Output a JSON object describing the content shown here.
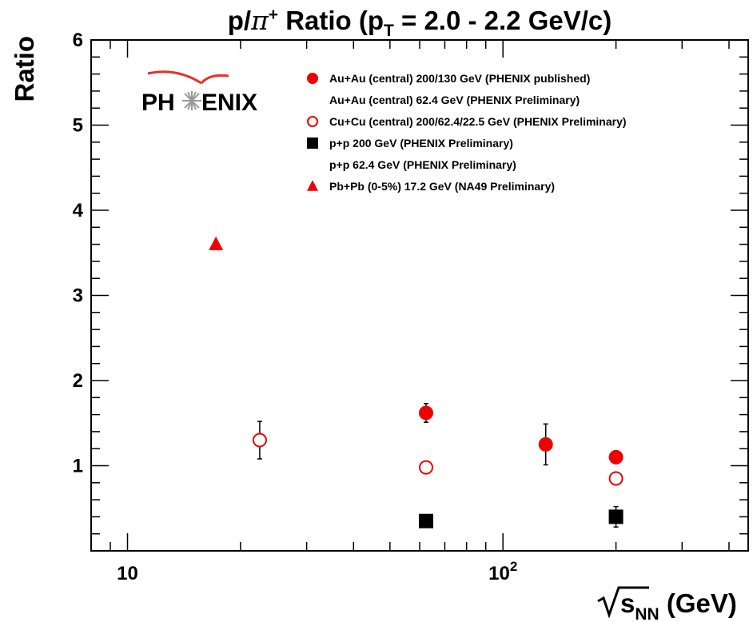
{
  "chart_data": {
    "type": "scatter",
    "title_parts": {
      "lead": "p/",
      "pi": "π",
      "sup": "+",
      "mid": " Ratio (p",
      "sub": "T",
      "tail": " = 2.0 - 2.2 GeV/c)"
    },
    "ylabel": "Ratio",
    "xlabel_parts": {
      "s": "s",
      "sub": "NN",
      "unit": " (GeV)"
    },
    "xscale": "log",
    "xlim": [
      8,
      450
    ],
    "ylim": [
      0,
      6
    ],
    "grid": false,
    "legend_position": "top-right",
    "x_ticks": [
      {
        "value": 10,
        "base": "10",
        "exp": ""
      },
      {
        "value": 100,
        "base": "10",
        "exp": "2"
      }
    ],
    "y_ticks": [
      {
        "value": 1,
        "label": "1"
      },
      {
        "value": 2,
        "label": "2"
      },
      {
        "value": 3,
        "label": "3"
      },
      {
        "value": 4,
        "label": "4"
      },
      {
        "value": 5,
        "label": "5"
      },
      {
        "value": 6,
        "label": "6"
      }
    ],
    "series": [
      {
        "name": "Au+Au (central) 200/130 GeV (PHENIX published)",
        "marker": "filled-circle",
        "color": "#ee0000",
        "points": [
          {
            "x": 130,
            "y": 1.25,
            "err": 0.24
          },
          {
            "x": 200,
            "y": 1.1,
            "err": 0.04
          }
        ]
      },
      {
        "name": "Au+Au (central) 62.4 GeV (PHENIX Preliminary)",
        "marker": "filled-circle",
        "color": "#ee0000",
        "legend_marker": "none",
        "points": [
          {
            "x": 62.4,
            "y": 1.62,
            "err": 0.11
          }
        ]
      },
      {
        "name": "Cu+Cu (central) 200/62.4/22.5 GeV (PHENIX Preliminary)",
        "marker": "open-circle",
        "color": "#ee0000",
        "points": [
          {
            "x": 22.5,
            "y": 1.3,
            "err": 0.22
          },
          {
            "x": 62.4,
            "y": 0.98,
            "err": 0
          },
          {
            "x": 200,
            "y": 0.85,
            "err": 0
          }
        ]
      },
      {
        "name": "p+p 200 GeV (PHENIX Preliminary)",
        "marker": "filled-square",
        "color": "#000000",
        "points": [
          {
            "x": 200,
            "y": 0.4,
            "err": 0.12
          }
        ]
      },
      {
        "name": "p+p 62.4 GeV (PHENIX Preliminary)",
        "marker": "filled-square",
        "color": "#000000",
        "legend_marker": "none",
        "points": [
          {
            "x": 62.4,
            "y": 0.35,
            "err": 0
          }
        ]
      },
      {
        "name": "Pb+Pb (0-5%) 17.2 GeV (NA49 Preliminary)",
        "marker": "filled-triangle",
        "color": "#ee0000",
        "points": [
          {
            "x": 17.2,
            "y": 3.6,
            "err": 0
          }
        ]
      }
    ]
  },
  "logo": {
    "text_left": "PH",
    "text_right": "ENIX",
    "arc_color": "#e8302a"
  }
}
